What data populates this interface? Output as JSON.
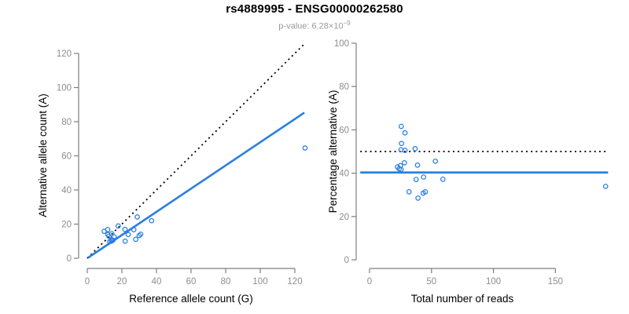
{
  "header": {
    "title": "rs4889995 - ENSG00000262580",
    "pvalue_prefix": "p-value: 6.28×10",
    "pvalue_exponent": "−9"
  },
  "colors": {
    "accent_blue": "#2a7fe0",
    "axis_gray": "#7f7f7f",
    "tick_label_gray": "#8d8d8d",
    "axis_title_black": "#000000",
    "dotted_line_black": "#000000"
  },
  "chart_data": [
    {
      "type": "scatter",
      "name": "allele-counts-scatter",
      "xlabel": "Reference allele count (G)",
      "ylabel": "Alternative allele count (A)",
      "xticks": [
        0,
        20,
        40,
        60,
        80,
        100,
        120
      ],
      "yticks": [
        0,
        20,
        40,
        60,
        80,
        100,
        120
      ],
      "xlim": [
        -4,
        127
      ],
      "ylim": [
        -6,
        126
      ],
      "grid": false,
      "legend": null,
      "points": [
        [
          9.8,
          15.8
        ],
        [
          11.8,
          16.8
        ],
        [
          11.9,
          13.9
        ],
        [
          12.5,
          12.9
        ],
        [
          14.2,
          14.4
        ],
        [
          17.9,
          18.9
        ],
        [
          28.9,
          24.2
        ],
        [
          15.5,
          12.6
        ],
        [
          14.1,
          10.8
        ],
        [
          12.9,
          9.7
        ],
        [
          13.9,
          10.0
        ],
        [
          14.8,
          10.6
        ],
        [
          21.8,
          16.9
        ],
        [
          23.7,
          13.9
        ],
        [
          26.9,
          16.7
        ],
        [
          37.2,
          22.0
        ],
        [
          21.9,
          10.0
        ],
        [
          30.0,
          13.3
        ],
        [
          30.9,
          14.1
        ],
        [
          28.0,
          11.1
        ],
        [
          125.9,
          64.6
        ]
      ],
      "lines": [
        {
          "name": "identity-line",
          "style": "dotted",
          "color": "#000000",
          "width": 1.8,
          "x1": 0,
          "y1": 0,
          "x2": 125.5,
          "y2": 125.5
        },
        {
          "name": "fit-line",
          "style": "solid",
          "color": "#2a7fe0",
          "width": 2.6,
          "x1": 0.5,
          "y1": 0.34,
          "x2": 125.5,
          "y2": 85.3
        }
      ]
    },
    {
      "type": "scatter",
      "name": "percentage-vs-reads-scatter",
      "xlabel": "Total number of reads",
      "ylabel": "Percentage alternative (A)",
      "xticks": [
        0,
        50,
        100,
        150
      ],
      "yticks": [
        0,
        20,
        40,
        60,
        80,
        100
      ],
      "xlim": [
        -8,
        193
      ],
      "ylim": [
        -4,
        100
      ],
      "grid": false,
      "legend": null,
      "points": [
        [
          25.6,
          61.6
        ],
        [
          28.6,
          58.6
        ],
        [
          25.8,
          53.7
        ],
        [
          25.4,
          50.8
        ],
        [
          28.6,
          50.5
        ],
        [
          36.8,
          51.3
        ],
        [
          53.1,
          45.5
        ],
        [
          28.1,
          44.8
        ],
        [
          24.9,
          43.5
        ],
        [
          22.6,
          42.9
        ],
        [
          23.9,
          42.0
        ],
        [
          25.4,
          41.7
        ],
        [
          38.7,
          43.7
        ],
        [
          37.6,
          37.1
        ],
        [
          43.6,
          38.2
        ],
        [
          59.2,
          37.2
        ],
        [
          31.9,
          31.4
        ],
        [
          43.3,
          30.8
        ],
        [
          45.0,
          31.4
        ],
        [
          39.1,
          28.5
        ],
        [
          190.5,
          33.9
        ]
      ],
      "lines": [
        {
          "name": "fifty-percent-line",
          "style": "dotted",
          "color": "#000000",
          "width": 1.8,
          "x1": -7.5,
          "y1": 50,
          "x2": 192.5,
          "y2": 50
        },
        {
          "name": "fit-line",
          "style": "solid",
          "color": "#2a7fe0",
          "width": 2.8,
          "x1": -7.5,
          "y1": 40.3,
          "x2": 192.5,
          "y2": 40.3
        }
      ]
    }
  ]
}
